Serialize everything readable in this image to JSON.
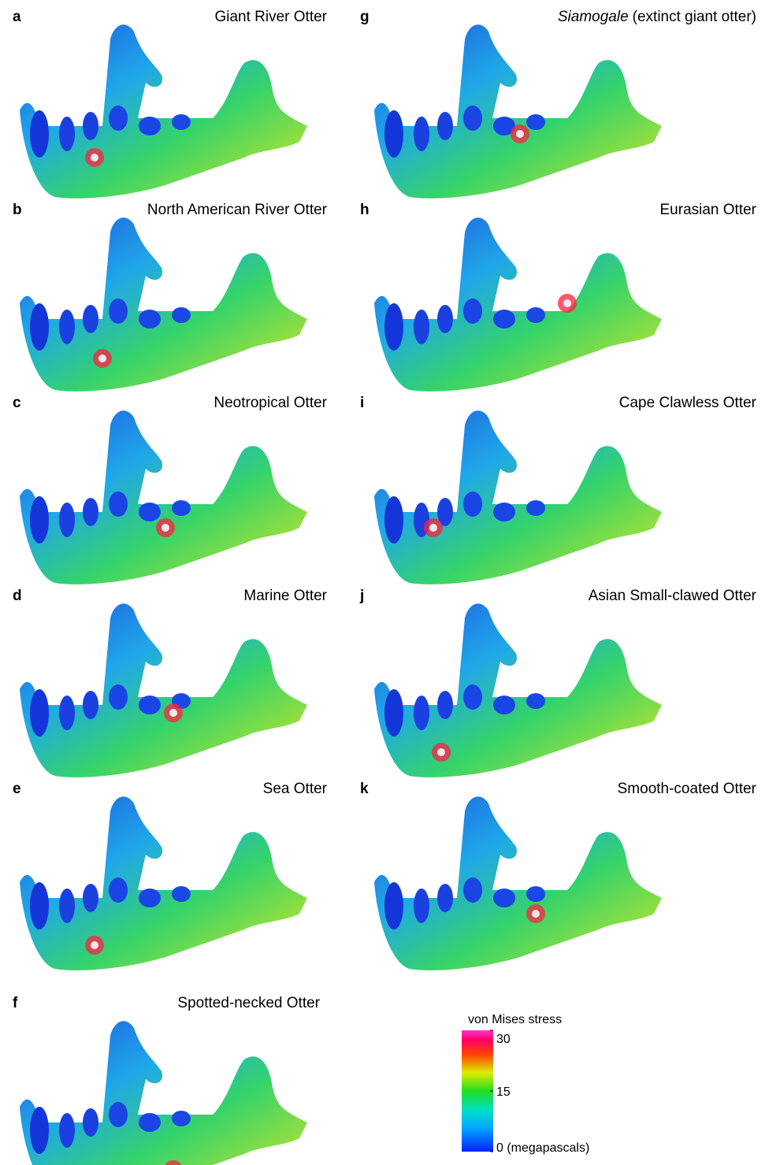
{
  "panels": [
    {
      "letter": "a",
      "title": "Giant River Otter"
    },
    {
      "letter": "b",
      "title": "North American River Otter"
    },
    {
      "letter": "c",
      "title": "Neotropical Otter"
    },
    {
      "letter": "d",
      "title": "Marine Otter"
    },
    {
      "letter": "e",
      "title": "Sea Otter"
    },
    {
      "letter": "f",
      "title": "Spotted-necked Otter"
    },
    {
      "letter": "g",
      "title_italic": "Siamogale",
      "title": "(extinct giant otter)"
    },
    {
      "letter": "h",
      "title": "Eurasian Otter"
    },
    {
      "letter": "i",
      "title": "Cape Clawless Otter"
    },
    {
      "letter": "j",
      "title": "Asian Small-clawed Otter"
    },
    {
      "letter": "k",
      "title": "Smooth-coated Otter"
    }
  ],
  "colorbar": {
    "title": "von Mises stress",
    "lim": [
      0,
      30
    ],
    "ticks": [
      30,
      15,
      {
        "value": 0,
        "label": "0 (megapascals)"
      }
    ]
  }
}
